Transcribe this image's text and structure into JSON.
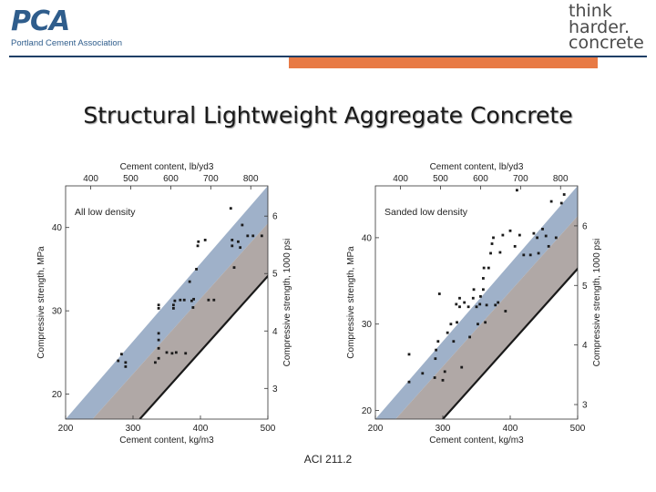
{
  "header": {
    "logo_mark": "PCA",
    "logo_subtitle": "Portland Cement Association",
    "tagline": [
      "think",
      "harder.",
      "concrete"
    ]
  },
  "slide": {
    "title": "Structural Lightweight Aggregate Concrete",
    "caption": "ACI 211.2"
  },
  "colors": {
    "band_upper": "#9fb1c9",
    "band_lower": "#b0a8a6",
    "brand_blue": "#2f5d8c",
    "accent_orange": "#e87a45"
  },
  "chart_data": [
    {
      "type": "scatter",
      "title": "All low density",
      "xlabel": "Cement content, kg/m3",
      "ylabel": "Compressive strength, MPa",
      "x2label": "Cement content, lb/yd3",
      "y2label": "Compressive strength, 1000 psi",
      "xlim": [
        200,
        500
      ],
      "ylim": [
        17,
        45
      ],
      "xticks": [
        200,
        300,
        400,
        500
      ],
      "yticks": [
        20,
        30,
        40
      ],
      "x2ticks": [
        400,
        500,
        600,
        700,
        800
      ],
      "y2ticks": [
        3,
        4,
        5,
        6
      ],
      "band": {
        "lower_line": [
          [
            240,
            17
          ],
          [
            500,
            40.5
          ]
        ],
        "upper_line": [
          [
            200,
            17
          ],
          [
            500,
            45
          ]
        ]
      },
      "points": [
        [
          278,
          24
        ],
        [
          283,
          24.8
        ],
        [
          289,
          23.3
        ],
        [
          289,
          23.8
        ],
        [
          333,
          23.8
        ],
        [
          338,
          24.3
        ],
        [
          338,
          25.5
        ],
        [
          338,
          26.5
        ],
        [
          338,
          27.3
        ],
        [
          338,
          30.3
        ],
        [
          338,
          30.7
        ],
        [
          350,
          25
        ],
        [
          358,
          24.9
        ],
        [
          360,
          30.3
        ],
        [
          360,
          30.7
        ],
        [
          362,
          31.2
        ],
        [
          364,
          25
        ],
        [
          370,
          31.3
        ],
        [
          376,
          31.3
        ],
        [
          378,
          24.9
        ],
        [
          384,
          33.5
        ],
        [
          387,
          31.2
        ],
        [
          389,
          30.4
        ],
        [
          390,
          31.4
        ],
        [
          394,
          35
        ],
        [
          396,
          37.8
        ],
        [
          397,
          38.3
        ],
        [
          407,
          38.5
        ],
        [
          412,
          31.3
        ],
        [
          420,
          31.3
        ],
        [
          445,
          42.3
        ],
        [
          447,
          38.5
        ],
        [
          447,
          37.8
        ],
        [
          450,
          35.2
        ],
        [
          456,
          38.3
        ],
        [
          459,
          37.6
        ],
        [
          462,
          40.3
        ],
        [
          470,
          39
        ],
        [
          478,
          39
        ],
        [
          491,
          39
        ]
      ]
    },
    {
      "type": "scatter",
      "title": "Sanded low density",
      "xlabel": "Cement content, kg/m3",
      "ylabel": "Compressive strength, MPa",
      "x2label": "Cement content, lb/yd3",
      "y2label": "Compressive strength, 1000 psi",
      "xlim": [
        200,
        500
      ],
      "ylim": [
        19,
        46
      ],
      "xticks": [
        200,
        300,
        400,
        500
      ],
      "yticks": [
        20,
        30,
        40
      ],
      "x2ticks": [
        400,
        500,
        600,
        700,
        800
      ],
      "y2ticks": [
        3,
        4,
        5,
        6
      ],
      "band": {
        "lower_line": [
          [
            230,
            19
          ],
          [
            500,
            42.5
          ]
        ],
        "upper_line": [
          [
            200,
            19
          ],
          [
            500,
            46
          ]
        ]
      },
      "points": [
        [
          250,
          26.5
        ],
        [
          250,
          23.3
        ],
        [
          270,
          24.3
        ],
        [
          288,
          23.8
        ],
        [
          289,
          26
        ],
        [
          290,
          27
        ],
        [
          293,
          28
        ],
        [
          295,
          33.5
        ],
        [
          300,
          23.5
        ],
        [
          303,
          24.5
        ],
        [
          307,
          29
        ],
        [
          312,
          30
        ],
        [
          316,
          28
        ],
        [
          320,
          32.3
        ],
        [
          321,
          30.2
        ],
        [
          325,
          32
        ],
        [
          325,
          33
        ],
        [
          328,
          25
        ],
        [
          332,
          32.5
        ],
        [
          338,
          32
        ],
        [
          340,
          28.5
        ],
        [
          345,
          33
        ],
        [
          346,
          34
        ],
        [
          350,
          32
        ],
        [
          352,
          30
        ],
        [
          355,
          32.3
        ],
        [
          356,
          33.2
        ],
        [
          360,
          34
        ],
        [
          360,
          35.3
        ],
        [
          361,
          36.5
        ],
        [
          363,
          30.2
        ],
        [
          365,
          32.2
        ],
        [
          368,
          36.5
        ],
        [
          371,
          38.2
        ],
        [
          373,
          39.3
        ],
        [
          375,
          40
        ],
        [
          378,
          32.2
        ],
        [
          382,
          32.5
        ],
        [
          385,
          38.3
        ],
        [
          389,
          40.3
        ],
        [
          393,
          31.5
        ],
        [
          400,
          40.8
        ],
        [
          407,
          39
        ],
        [
          410,
          45.5
        ],
        [
          414,
          40.3
        ],
        [
          420,
          38
        ],
        [
          430,
          38
        ],
        [
          435,
          40.5
        ],
        [
          440,
          40
        ],
        [
          442,
          38.2
        ],
        [
          448,
          41
        ],
        [
          453,
          40.2
        ],
        [
          457,
          39
        ],
        [
          461,
          44.2
        ],
        [
          468,
          40
        ],
        [
          476,
          44
        ],
        [
          480,
          45
        ]
      ]
    }
  ]
}
